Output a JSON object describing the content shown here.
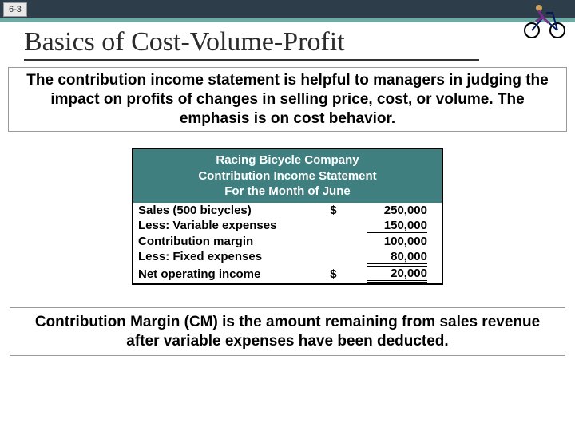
{
  "slide_number": "6-3",
  "title": "Basics of Cost-Volume-Profit",
  "intro_text": "The contribution income statement is helpful to managers in judging the impact on profits of changes in selling price, cost, or volume. The emphasis is on cost behavior.",
  "statement": {
    "header_line1": "Racing Bicycle Company",
    "header_line2": "Contribution Income Statement",
    "header_line3": "For the Month of June",
    "header_bg": "#3f7f80",
    "rows": [
      {
        "label": "Sales (500 bicycles)",
        "dollar": "$",
        "value": "250,000",
        "underline": false,
        "total": false
      },
      {
        "label": "Less: Variable expenses",
        "dollar": "",
        "value": "150,000",
        "underline": true,
        "total": false
      },
      {
        "label": "Contribution margin",
        "dollar": "",
        "value": "100,000",
        "underline": false,
        "total": false
      },
      {
        "label": "Less: Fixed expenses",
        "dollar": "",
        "value": "80,000",
        "underline": true,
        "total": false
      },
      {
        "label": "Net operating income",
        "dollar": "$",
        "value": "20,000",
        "underline": false,
        "total": true
      }
    ]
  },
  "footer_text": "Contribution Margin (CM) is the amount remaining from sales revenue after variable expenses have been deducted.",
  "colors": {
    "topbar_bg": "#2d3e4a",
    "topbar_accent": "#6fa9a4",
    "title_color": "#2b2b2b"
  }
}
